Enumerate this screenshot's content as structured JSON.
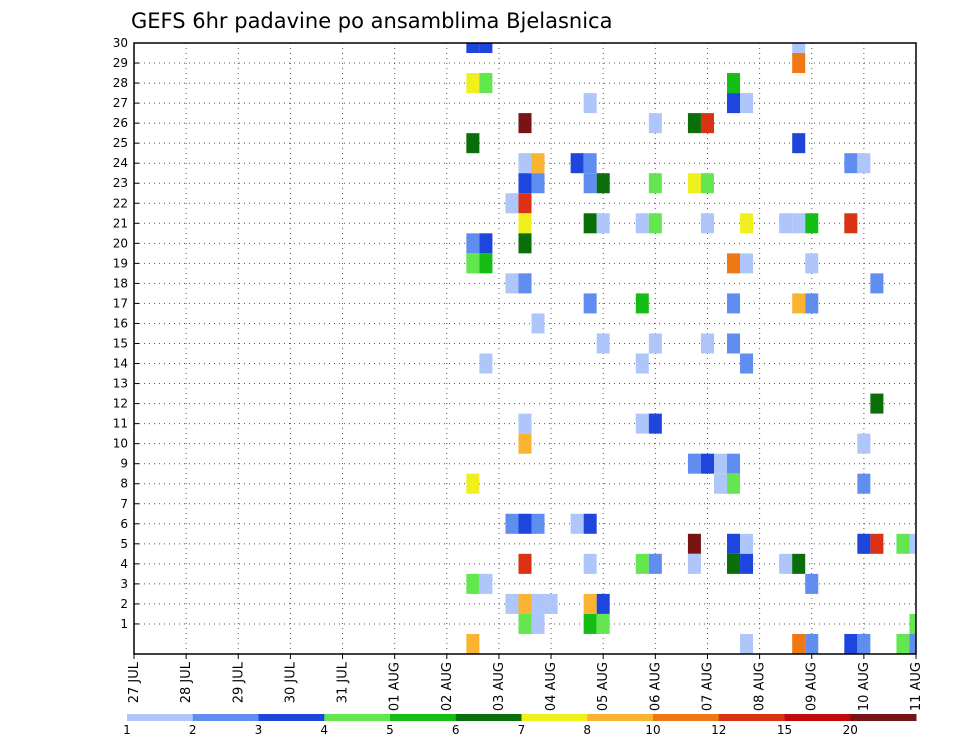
{
  "chart_data": {
    "type": "heatmap",
    "title": "GEFS 6hr padavine po ansamblima Bjelasnica",
    "xlabel": "",
    "ylabel": "",
    "x_tick_labels": [
      "27 JUL",
      "28 JUL",
      "29 JUL",
      "30 JUL",
      "31 JUL",
      "01 AUG",
      "02 AUG",
      "03 AUG",
      "04 AUG",
      "05 AUG",
      "06 AUG",
      "07 AUG",
      "08 AUG",
      "09 AUG",
      "10 AUG",
      "11 AUG"
    ],
    "y_tick_labels": [
      "1",
      "2",
      "3",
      "4",
      "5",
      "6",
      "7",
      "8",
      "9",
      "10",
      "11",
      "12",
      "13",
      "14",
      "15",
      "16",
      "17",
      "18",
      "19",
      "20",
      "21",
      "22",
      "23",
      "24",
      "25",
      "26",
      "27",
      "28",
      "29",
      "30"
    ],
    "x_range_days": [
      0,
      15
    ],
    "y_range_members": [
      0,
      30
    ],
    "grid": "dotted",
    "colorbar": {
      "labels": [
        "1",
        "2",
        "3",
        "4",
        "5",
        "6",
        "7",
        "8",
        "10",
        "12",
        "15",
        "20"
      ],
      "colors": [
        "#afc6fa",
        "#5f8ef0",
        "#1e46dc",
        "#64e650",
        "#14be14",
        "#0a6e0a",
        "#f0f01e",
        "#fab432",
        "#f07814",
        "#dc3214",
        "#be0a0a",
        "#781414"
      ]
    },
    "cells": [
      {
        "m": 30,
        "d": 6.5,
        "v": 3
      },
      {
        "m": 30,
        "d": 6.75,
        "v": 3
      },
      {
        "m": 30,
        "d": 12.75,
        "v": 1
      },
      {
        "m": 29,
        "d": 12.75,
        "v": 10
      },
      {
        "m": 28,
        "d": 6.5,
        "v": 7
      },
      {
        "m": 28,
        "d": 6.75,
        "v": 4
      },
      {
        "m": 28,
        "d": 11.5,
        "v": 5
      },
      {
        "m": 27,
        "d": 8.75,
        "v": 1
      },
      {
        "m": 27,
        "d": 11.5,
        "v": 3
      },
      {
        "m": 27,
        "d": 11.75,
        "v": 1
      },
      {
        "m": 26,
        "d": 7.5,
        "v": 20
      },
      {
        "m": 26,
        "d": 10,
        "v": 1
      },
      {
        "m": 26,
        "d": 10.75,
        "v": 6
      },
      {
        "m": 26,
        "d": 11,
        "v": 12
      },
      {
        "m": 25,
        "d": 6.5,
        "v": 6
      },
      {
        "m": 25,
        "d": 12.75,
        "v": 3
      },
      {
        "m": 24,
        "d": 7.5,
        "v": 1
      },
      {
        "m": 24,
        "d": 7.75,
        "v": 8
      },
      {
        "m": 24,
        "d": 8.5,
        "v": 3
      },
      {
        "m": 24,
        "d": 8.75,
        "v": 2
      },
      {
        "m": 24,
        "d": 13.75,
        "v": 2
      },
      {
        "m": 24,
        "d": 14,
        "v": 1
      },
      {
        "m": 23,
        "d": 7.5,
        "v": 3
      },
      {
        "m": 23,
        "d": 7.75,
        "v": 2
      },
      {
        "m": 23,
        "d": 8.75,
        "v": 2
      },
      {
        "m": 23,
        "d": 9,
        "v": 6
      },
      {
        "m": 23,
        "d": 10,
        "v": 4
      },
      {
        "m": 23,
        "d": 10.75,
        "v": 7
      },
      {
        "m": 23,
        "d": 11,
        "v": 4
      },
      {
        "m": 22,
        "d": 7.25,
        "v": 1
      },
      {
        "m": 22,
        "d": 7.5,
        "v": 12
      },
      {
        "m": 21,
        "d": 7.5,
        "v": 7
      },
      {
        "m": 21,
        "d": 8.75,
        "v": 6
      },
      {
        "m": 21,
        "d": 9,
        "v": 1
      },
      {
        "m": 21,
        "d": 9.75,
        "v": 1
      },
      {
        "m": 21,
        "d": 10,
        "v": 4
      },
      {
        "m": 21,
        "d": 11,
        "v": 1
      },
      {
        "m": 21,
        "d": 11.75,
        "v": 7
      },
      {
        "m": 21,
        "d": 12.5,
        "v": 1
      },
      {
        "m": 21,
        "d": 12.75,
        "v": 1
      },
      {
        "m": 21,
        "d": 13,
        "v": 5
      },
      {
        "m": 21,
        "d": 13.75,
        "v": 12
      },
      {
        "m": 20,
        "d": 6.5,
        "v": 2
      },
      {
        "m": 20,
        "d": 6.75,
        "v": 3
      },
      {
        "m": 20,
        "d": 7.5,
        "v": 6
      },
      {
        "m": 19,
        "d": 6.5,
        "v": 4
      },
      {
        "m": 19,
        "d": 6.75,
        "v": 5
      },
      {
        "m": 19,
        "d": 11.5,
        "v": 10
      },
      {
        "m": 19,
        "d": 11.75,
        "v": 1
      },
      {
        "m": 19,
        "d": 13,
        "v": 1
      },
      {
        "m": 18,
        "d": 7.25,
        "v": 1
      },
      {
        "m": 18,
        "d": 7.5,
        "v": 2
      },
      {
        "m": 18,
        "d": 14.25,
        "v": 2
      },
      {
        "m": 17,
        "d": 8.75,
        "v": 2
      },
      {
        "m": 17,
        "d": 9.75,
        "v": 5
      },
      {
        "m": 17,
        "d": 11.5,
        "v": 2
      },
      {
        "m": 17,
        "d": 12.75,
        "v": 8
      },
      {
        "m": 17,
        "d": 13,
        "v": 2
      },
      {
        "m": 16,
        "d": 7.75,
        "v": 1
      },
      {
        "m": 15,
        "d": 9,
        "v": 1
      },
      {
        "m": 15,
        "d": 10,
        "v": 1
      },
      {
        "m": 15,
        "d": 11,
        "v": 1
      },
      {
        "m": 15,
        "d": 11.5,
        "v": 2
      },
      {
        "m": 14,
        "d": 6.75,
        "v": 1
      },
      {
        "m": 14,
        "d": 9.75,
        "v": 1
      },
      {
        "m": 14,
        "d": 11.75,
        "v": 2
      },
      {
        "m": 12,
        "d": 14.25,
        "v": 6
      },
      {
        "m": 11,
        "d": 7.5,
        "v": 1
      },
      {
        "m": 11,
        "d": 9.75,
        "v": 1
      },
      {
        "m": 11,
        "d": 10,
        "v": 3
      },
      {
        "m": 10,
        "d": 7.5,
        "v": 8
      },
      {
        "m": 10,
        "d": 14,
        "v": 1
      },
      {
        "m": 9,
        "d": 10.75,
        "v": 2
      },
      {
        "m": 9,
        "d": 11,
        "v": 3
      },
      {
        "m": 9,
        "d": 11.25,
        "v": 1
      },
      {
        "m": 9,
        "d": 11.5,
        "v": 2
      },
      {
        "m": 8,
        "d": 6.5,
        "v": 7
      },
      {
        "m": 8,
        "d": 11.25,
        "v": 1
      },
      {
        "m": 8,
        "d": 11.5,
        "v": 4
      },
      {
        "m": 8,
        "d": 14,
        "v": 2
      },
      {
        "m": 6,
        "d": 7.25,
        "v": 2
      },
      {
        "m": 6,
        "d": 7.5,
        "v": 3
      },
      {
        "m": 6,
        "d": 7.75,
        "v": 2
      },
      {
        "m": 6,
        "d": 8.5,
        "v": 1
      },
      {
        "m": 6,
        "d": 8.75,
        "v": 3
      },
      {
        "m": 5,
        "d": 10.75,
        "v": 20
      },
      {
        "m": 5,
        "d": 11.5,
        "v": 3
      },
      {
        "m": 5,
        "d": 11.75,
        "v": 1
      },
      {
        "m": 5,
        "d": 14,
        "v": 3
      },
      {
        "m": 5,
        "d": 14.25,
        "v": 12
      },
      {
        "m": 5,
        "d": 14.75,
        "v": 4
      },
      {
        "m": 5,
        "d": 15,
        "v": 1
      },
      {
        "m": 4,
        "d": 7.5,
        "v": 12
      },
      {
        "m": 4,
        "d": 8.75,
        "v": 1
      },
      {
        "m": 4,
        "d": 9.75,
        "v": 4
      },
      {
        "m": 4,
        "d": 10,
        "v": 2
      },
      {
        "m": 4,
        "d": 10.75,
        "v": 1
      },
      {
        "m": 4,
        "d": 11.5,
        "v": 6
      },
      {
        "m": 4,
        "d": 11.75,
        "v": 3
      },
      {
        "m": 4,
        "d": 12.5,
        "v": 1
      },
      {
        "m": 4,
        "d": 12.75,
        "v": 6
      },
      {
        "m": 3,
        "d": 6.5,
        "v": 4
      },
      {
        "m": 3,
        "d": 6.75,
        "v": 1
      },
      {
        "m": 3,
        "d": 13,
        "v": 2
      },
      {
        "m": 2,
        "d": 7.25,
        "v": 1
      },
      {
        "m": 2,
        "d": 7.5,
        "v": 8
      },
      {
        "m": 2,
        "d": 7.75,
        "v": 1
      },
      {
        "m": 2,
        "d": 8,
        "v": 1
      },
      {
        "m": 2,
        "d": 8.75,
        "v": 8
      },
      {
        "m": 2,
        "d": 9,
        "v": 3
      },
      {
        "m": 1,
        "d": 7.5,
        "v": 4
      },
      {
        "m": 1,
        "d": 7.75,
        "v": 1
      },
      {
        "m": 1,
        "d": 8.75,
        "v": 5
      },
      {
        "m": 1,
        "d": 9,
        "v": 4
      },
      {
        "m": 1,
        "d": 15,
        "v": 4
      },
      {
        "m": 0,
        "d": 6.5,
        "v": 8
      },
      {
        "m": 0,
        "d": 11.75,
        "v": 1
      },
      {
        "m": 0,
        "d": 12.75,
        "v": 10
      },
      {
        "m": 0,
        "d": 13,
        "v": 2
      },
      {
        "m": 0,
        "d": 13.75,
        "v": 3
      },
      {
        "m": 0,
        "d": 14,
        "v": 2
      },
      {
        "m": 0,
        "d": 14.75,
        "v": 4
      },
      {
        "m": 0,
        "d": 15,
        "v": 2
      }
    ]
  }
}
